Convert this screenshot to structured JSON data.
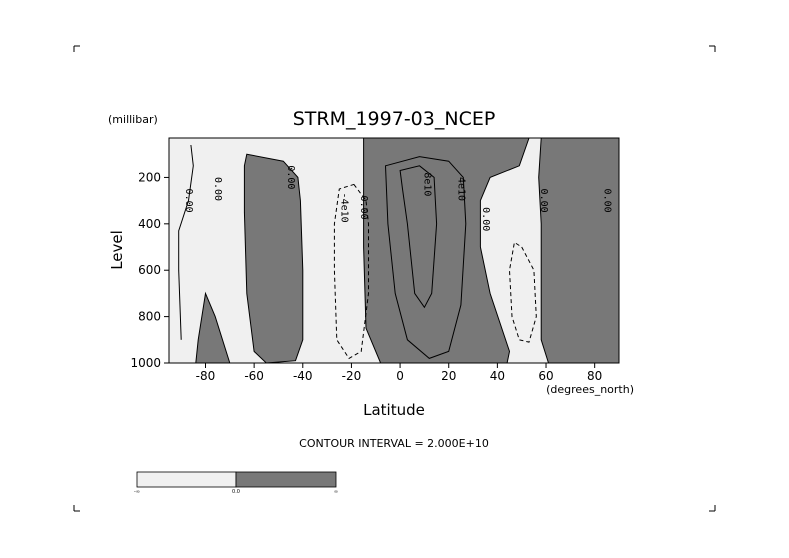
{
  "colors": {
    "background": "#ffffff",
    "positive_fill": "#787878",
    "negative_fill": "#f0f0f0",
    "line": "#000000"
  },
  "chart_data": {
    "type": "contour",
    "title": "STRM_1997-03_NCEP",
    "xlabel": "Latitude",
    "ylabel": "Level",
    "x_unit": "(degrees_north)",
    "y_unit": "(millibar)",
    "xlim": [
      -95,
      90
    ],
    "ylim": [
      1000,
      30
    ],
    "y_inverted": true,
    "x_ticks": [
      -80,
      -60,
      -40,
      -20,
      0,
      20,
      40,
      60,
      80
    ],
    "x_tick_labels": [
      "-80",
      "-60",
      "-40",
      "-20",
      "0",
      "20",
      "40",
      "60",
      "80"
    ],
    "y_ticks": [
      200,
      400,
      600,
      800,
      1000
    ],
    "y_tick_labels": [
      "200",
      "400",
      "600",
      "800",
      "1000"
    ],
    "contour_interval_text": "CONTOUR INTERVAL = 2.000E+10",
    "contour_interval": 20000000000.0,
    "colorbar": {
      "labels": [
        "-∞",
        "0.0",
        "∞"
      ],
      "colors": [
        "#f0f0f0",
        "#787878"
      ]
    },
    "positive_regions": [
      [
        [
          -70,
          1000
        ],
        [
          -76,
          800
        ],
        [
          -80,
          700
        ],
        [
          -83,
          900
        ],
        [
          -84,
          1000
        ]
      ],
      [
        [
          -63,
          100
        ],
        [
          -48,
          130
        ],
        [
          -42,
          200
        ],
        [
          -41,
          300
        ],
        [
          -40,
          600
        ],
        [
          -40,
          900
        ],
        [
          -43,
          990
        ],
        [
          -55,
          1000
        ],
        [
          -60,
          950
        ],
        [
          -63,
          700
        ],
        [
          -64,
          350
        ],
        [
          -64,
          150
        ]
      ],
      [
        [
          -15,
          30
        ],
        [
          0,
          30
        ],
        [
          25,
          30
        ],
        [
          40,
          30
        ],
        [
          53,
          30
        ],
        [
          49,
          150
        ],
        [
          37,
          200
        ],
        [
          33,
          300
        ],
        [
          33,
          500
        ],
        [
          37,
          700
        ],
        [
          45,
          950
        ],
        [
          44,
          1000
        ],
        [
          0,
          1000
        ],
        [
          -8,
          1000
        ],
        [
          -14,
          850
        ],
        [
          -15,
          500
        ],
        [
          -15,
          200
        ]
      ],
      [
        [
          58,
          30
        ],
        [
          91,
          30
        ],
        [
          91,
          1000
        ],
        [
          61,
          1000
        ],
        [
          58,
          900
        ],
        [
          58,
          400
        ],
        [
          57,
          200
        ]
      ]
    ],
    "contours": [
      {
        "label": "0.00",
        "label_at": [
          -88,
          300
        ],
        "points": [
          [
            -86,
            60
          ],
          [
            -85,
            150
          ],
          [
            -87,
            300
          ],
          [
            -91,
            430
          ],
          [
            -91,
            600
          ],
          [
            -90,
            900
          ]
        ]
      },
      {
        "label": "0.00",
        "label_at": [
          -76,
          250
        ],
        "points": []
      },
      {
        "label": "0.00",
        "label_at": [
          -46,
          200
        ],
        "points": []
      },
      {
        "label": "-4e10",
        "label_at": [
          -24,
          330
        ],
        "points": [
          [
            -19,
            230
          ],
          [
            -14,
            300
          ],
          [
            -13,
            400
          ],
          [
            -13,
            700
          ],
          [
            -16,
            950
          ],
          [
            -21,
            980
          ],
          [
            -26,
            900
          ],
          [
            -27,
            600
          ],
          [
            -27,
            400
          ],
          [
            -25,
            250
          ]
        ]
      },
      {
        "label": "0.00",
        "label_at": [
          -16,
          330
        ],
        "points": []
      },
      {
        "label": "8e10",
        "label_at": [
          10,
          230
        ],
        "points": [
          [
            0,
            170
          ],
          [
            8,
            150
          ],
          [
            14,
            200
          ],
          [
            15,
            400
          ],
          [
            13,
            700
          ],
          [
            10,
            760
          ],
          [
            6,
            700
          ],
          [
            3,
            400
          ],
          [
            1,
            250
          ]
        ]
      },
      {
        "label": "4e10",
        "label_at": [
          24,
          250
        ],
        "points": [
          [
            -6,
            150
          ],
          [
            8,
            110
          ],
          [
            20,
            130
          ],
          [
            26,
            200
          ],
          [
            27,
            400
          ],
          [
            25,
            750
          ],
          [
            20,
            950
          ],
          [
            12,
            980
          ],
          [
            3,
            900
          ],
          [
            -2,
            700
          ],
          [
            -5,
            400
          ]
        ]
      },
      {
        "label": "0.00",
        "label_at": [
          34,
          380
        ],
        "points": []
      },
      {
        "label": "0.00",
        "label_at": [
          58,
          300
        ],
        "points": []
      },
      {
        "label": "0.00",
        "label_at": [
          84,
          300
        ],
        "points": []
      },
      {
        "label": "",
        "label_at": null,
        "points": [
          [
            50,
            500
          ],
          [
            55,
            600
          ],
          [
            56,
            800
          ],
          [
            53,
            910
          ],
          [
            49,
            900
          ],
          [
            46,
            800
          ],
          [
            45,
            600
          ],
          [
            47,
            480
          ]
        ]
      }
    ]
  }
}
